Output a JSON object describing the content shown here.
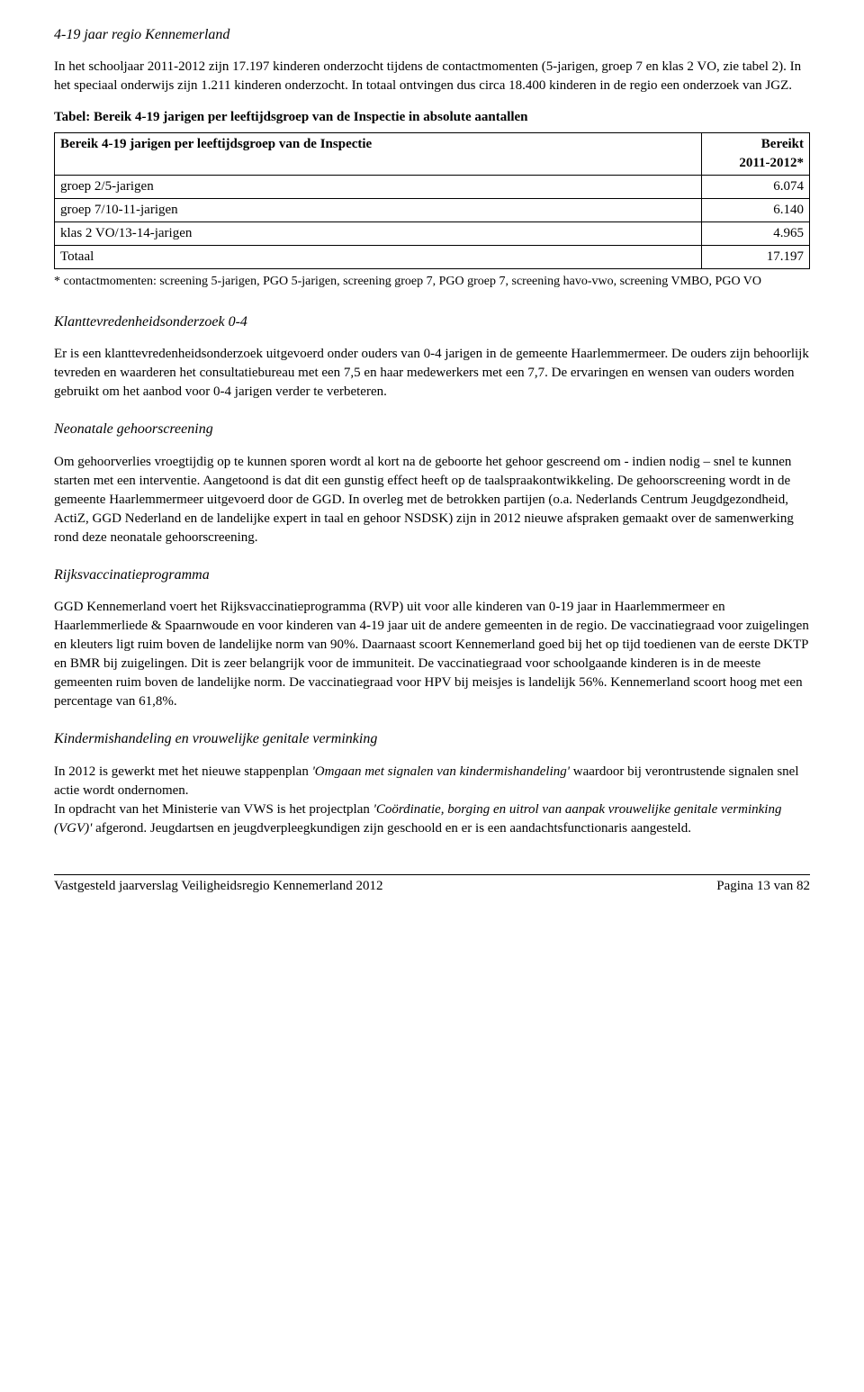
{
  "section1": {
    "title": "4-19 jaar regio Kennemerland",
    "para1": "In het schooljaar 2011-2012 zijn 17.197 kinderen onderzocht tijdens de contactmomenten (5-jarigen, groep 7 en klas 2 VO, zie tabel 2). In het speciaal onderwijs zijn 1.211 kinderen onderzocht. In totaal ontvingen dus circa 18.400 kinderen in de regio een onderzoek van JGZ.",
    "tableIntro": "Tabel: Bereik 4-19 jarigen per leeftijdsgroep van de Inspectie in absolute aantallen",
    "table": {
      "headerLeft": "Bereik 4-19 jarigen per leeftijdsgroep van de Inspectie",
      "headerRight1": "Bereikt",
      "headerRight2": "2011-2012*",
      "rows": [
        {
          "label": "groep 2/5-jarigen",
          "value": "6.074"
        },
        {
          "label": "groep 7/10-11-jarigen",
          "value": "6.140"
        },
        {
          "label": "klas 2 VO/13-14-jarigen",
          "value": "4.965"
        },
        {
          "label": "Totaal",
          "value": "17.197"
        }
      ]
    },
    "footnote": "* contactmomenten: screening 5-jarigen, PGO 5-jarigen, screening groep 7, PGO groep 7, screening havo-vwo, screening VMBO, PGO VO"
  },
  "section2": {
    "title": "Klanttevredenheidsonderzoek 0-4",
    "para": "Er is een klanttevredenheidsonderzoek uitgevoerd onder ouders van 0-4 jarigen in de gemeente Haarlemmermeer. De ouders zijn behoorlijk tevreden en waarderen het consultatiebureau met een 7,5 en haar medewerkers met een 7,7. De ervaringen en wensen van ouders worden gebruikt om het aanbod voor 0-4 jarigen verder te verbeteren."
  },
  "section3": {
    "title": "Neonatale gehoorscreening",
    "para": "Om gehoorverlies vroegtijdig op te kunnen sporen wordt al kort na de geboorte het gehoor gescreend om - indien nodig – snel te kunnen starten met een interventie. Aangetoond is dat dit een gunstig effect heeft op de taalspraakontwikkeling. De gehoorscreening wordt in de gemeente Haarlemmermeer uitgevoerd door de GGD. In overleg met de betrokken partijen (o.a. Nederlands Centrum Jeugdgezondheid, ActiZ, GGD Nederland en de landelijke expert in taal en gehoor NSDSK) zijn in 2012 nieuwe afspraken gemaakt over de samenwerking rond deze neonatale gehoorscreening."
  },
  "section4": {
    "title": "Rijksvaccinatieprogramma",
    "para": "GGD Kennemerland voert het Rijksvaccinatieprogramma (RVP) uit voor alle kinderen van 0-19 jaar in Haarlemmermeer en Haarlemmerliede & Spaarnwoude en voor kinderen van 4-19 jaar uit de andere gemeenten in de regio. De vaccinatiegraad voor zuigelingen en kleuters ligt ruim boven de landelijke norm van 90%. Daarnaast scoort Kennemerland goed bij het op tijd toedienen van de eerste DKTP en BMR bij zuigelingen. Dit is zeer belangrijk voor de immuniteit. De vaccinatiegraad voor schoolgaande kinderen is in de meeste gemeenten ruim boven de landelijke norm. De vaccinatiegraad voor HPV bij meisjes is landelijk 56%. Kennemerland scoort hoog met een percentage van 61,8%."
  },
  "section5": {
    "title": "Kindermishandeling en vrouwelijke genitale verminking",
    "para1_pre": "In 2012 is gewerkt met het nieuwe stappenplan ",
    "para1_em1": "'Omgaan met signalen van kindermishandeling'",
    "para1_post1": " waardoor bij verontrustende signalen snel actie wordt ondernomen.",
    "para1_line2_pre": "In opdracht van het Ministerie van VWS is het projectplan ",
    "para1_em2": "'Coördinatie, borging en uitrol van aanpak vrouwelijke genitale verminking (VGV)'",
    "para1_line2_post": " afgerond. Jeugdartsen en jeugdverpleegkundigen zijn geschoold en er is een aandachtsfunctionaris aangesteld."
  },
  "footer": {
    "left": "Vastgesteld jaarverslag Veiligheidsregio Kennemerland 2012",
    "right": "Pagina 13 van 82"
  }
}
